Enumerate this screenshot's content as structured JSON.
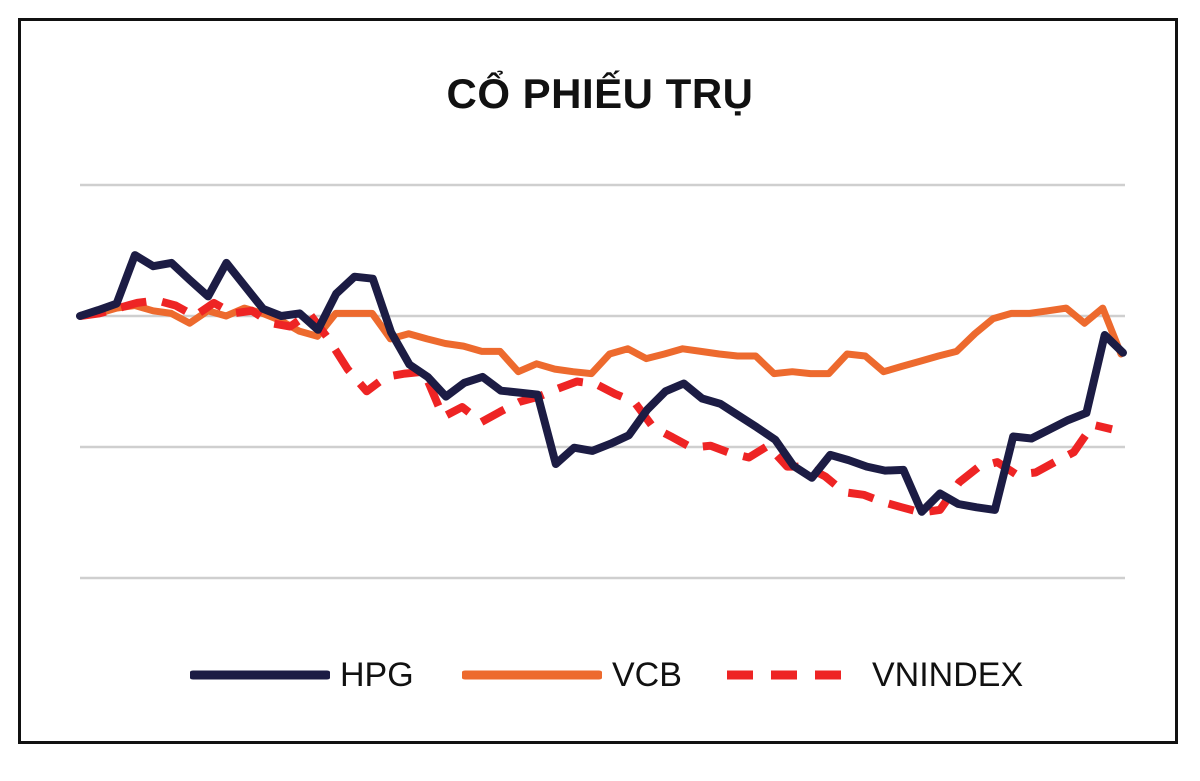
{
  "chart_data": {
    "type": "line",
    "title": "CỔ PHIẾU TRỤ",
    "xlabel": "",
    "ylabel": "",
    "grid": true,
    "legend_position": "bottom",
    "y_tick_labels_shown": false,
    "x_tick_labels_shown": false,
    "series": [
      {
        "name": "HPG",
        "color": "#1c1c44",
        "style": "solid",
        "values": [
          100.0,
          100.9,
          101.9,
          109.3,
          107.6,
          108.1,
          105.5,
          103.0,
          108.1,
          104.6,
          101.1,
          100.0,
          100.4,
          97.9,
          103.4,
          106.0,
          105.7,
          97.5,
          92.6,
          90.7,
          87.7,
          89.8,
          90.7,
          88.6,
          88.3,
          88.0,
          77.4,
          79.9,
          79.4,
          80.5,
          81.8,
          85.7,
          88.5,
          89.7,
          87.4,
          86.6,
          84.8,
          83.0,
          81.1,
          77.1,
          75.3,
          78.8,
          78.0,
          77.0,
          76.4,
          76.5,
          70.1,
          72.9,
          71.3,
          70.8,
          70.4,
          81.6,
          81.3,
          82.7,
          84.1,
          85.2,
          97.1,
          94.4
        ]
      },
      {
        "name": "VCB",
        "color": "#ed6a2e",
        "style": "solid",
        "values": [
          100.0,
          100.4,
          101.2,
          101.6,
          100.8,
          100.4,
          98.9,
          100.8,
          100.0,
          101.2,
          100.4,
          99.3,
          97.7,
          96.9,
          100.4,
          100.4,
          100.4,
          96.5,
          97.3,
          96.5,
          95.8,
          95.4,
          94.6,
          94.6,
          91.5,
          92.7,
          91.9,
          91.5,
          91.2,
          94.2,
          95.0,
          93.5,
          94.2,
          95.0,
          94.6,
          94.2,
          93.9,
          93.9,
          91.2,
          91.5,
          91.2,
          91.2,
          94.2,
          93.9,
          91.5,
          92.3,
          93.1,
          93.9,
          94.6,
          97.3,
          99.6,
          100.4,
          100.4,
          100.8,
          101.2,
          98.9,
          101.2,
          94.2
        ]
      },
      {
        "name": "VNINDEX",
        "color": "#ee2424",
        "style": "dashed",
        "values": [
          100.0,
          100.4,
          101.2,
          102.0,
          102.4,
          101.6,
          100.0,
          102.0,
          100.4,
          100.8,
          98.9,
          98.4,
          100.4,
          96.5,
          91.9,
          88.5,
          90.7,
          91.2,
          91.5,
          84.6,
          86.1,
          83.8,
          85.4,
          86.9,
          87.7,
          88.9,
          90.0,
          89.6,
          88.1,
          86.9,
          83.0,
          81.5,
          79.9,
          80.2,
          79.1,
          78.4,
          80.2,
          77.0,
          77.0,
          75.5,
          73.1,
          72.7,
          71.6,
          70.8,
          70.0,
          70.4,
          74.6,
          76.9,
          77.7,
          75.8,
          76.1,
          77.7,
          79.2,
          83.4,
          82.7
        ]
      }
    ],
    "ylim": [
      60,
      120
    ],
    "y_gridlines": [
      60,
      80,
      100,
      120
    ]
  }
}
